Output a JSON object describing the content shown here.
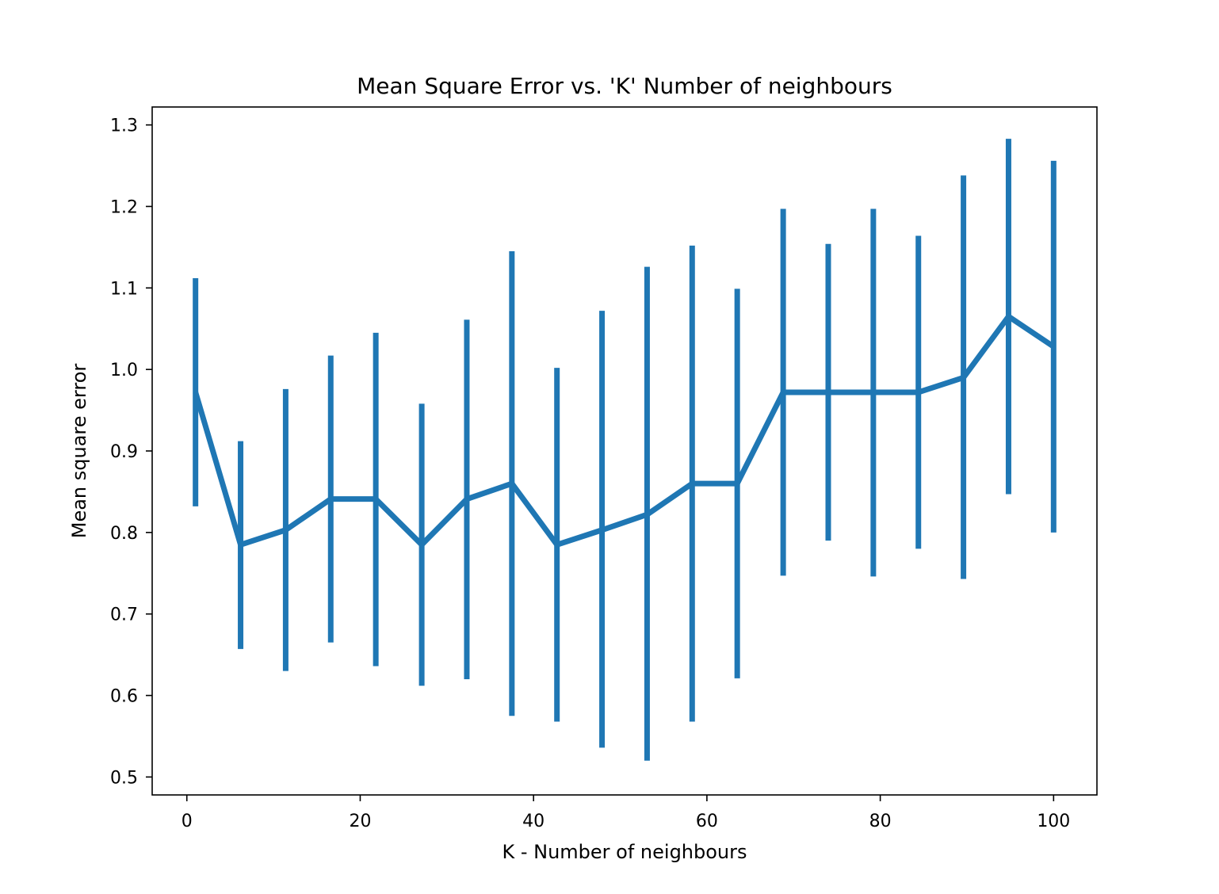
{
  "chart_data": {
    "type": "line",
    "title": "Mean Square Error vs. 'K' Number of neighbours",
    "xlabel": "K - Number of neighbours",
    "ylabel": "Mean square error",
    "xlim": [
      -4,
      105
    ],
    "ylim": [
      0.478,
      1.322
    ],
    "x_ticks": [
      0,
      20,
      40,
      60,
      80,
      100
    ],
    "y_ticks": [
      0.5,
      0.6,
      0.7,
      0.8,
      0.9,
      1.0,
      1.1,
      1.2,
      1.3
    ],
    "x_tick_labels": [
      "0",
      "20",
      "40",
      "60",
      "80",
      "100"
    ],
    "y_tick_labels": [
      "0.5",
      "0.6",
      "0.7",
      "0.8",
      "0.9",
      "1.0",
      "1.1",
      "1.2",
      "1.3"
    ],
    "grid": false,
    "color": "#1f77b4",
    "series": [
      {
        "x": [
          1,
          6.2,
          11.4,
          16.6,
          21.8,
          27.1,
          32.3,
          37.5,
          42.7,
          47.9,
          53.1,
          58.3,
          63.5,
          68.8,
          74,
          79.2,
          84.4,
          89.6,
          94.8,
          100
        ],
        "y": [
          0.972,
          0.785,
          0.803,
          0.841,
          0.841,
          0.785,
          0.841,
          0.86,
          0.785,
          0.803,
          0.822,
          0.86,
          0.86,
          0.972,
          0.972,
          0.972,
          0.972,
          0.99,
          1.065,
          1.028
        ],
        "yerr_low": [
          0.832,
          0.657,
          0.63,
          0.665,
          0.636,
          0.612,
          0.62,
          0.575,
          0.568,
          0.536,
          0.52,
          0.568,
          0.621,
          0.747,
          0.79,
          0.746,
          0.78,
          0.743,
          0.847,
          0.8
        ],
        "yerr_high": [
          1.112,
          0.912,
          0.976,
          1.017,
          1.045,
          0.958,
          1.061,
          1.145,
          1.002,
          1.072,
          1.126,
          1.152,
          1.099,
          1.197,
          1.154,
          1.197,
          1.164,
          1.238,
          1.283,
          1.256
        ]
      }
    ]
  }
}
